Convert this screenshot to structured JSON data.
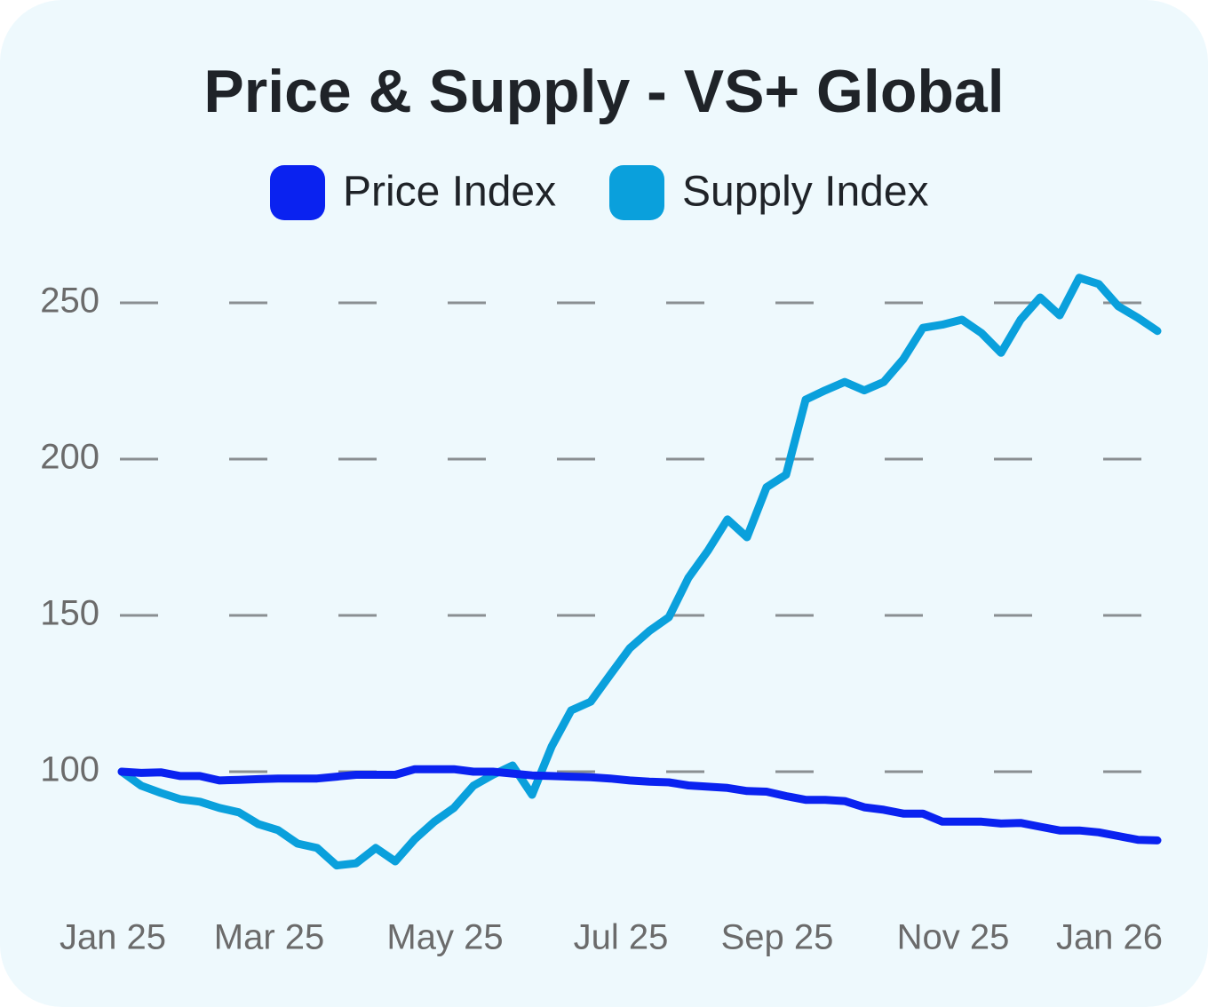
{
  "chart_data": {
    "type": "line",
    "title": "Price & Supply - VS+ Global",
    "categories": [
      "Jan 25",
      null,
      null,
      null,
      null,
      null,
      null,
      null,
      "Mar 25",
      null,
      null,
      null,
      null,
      null,
      null,
      null,
      null,
      "May 25",
      null,
      null,
      null,
      null,
      null,
      null,
      null,
      null,
      "Jul 25",
      null,
      null,
      null,
      null,
      null,
      null,
      null,
      "Sep 25",
      null,
      null,
      null,
      null,
      null,
      null,
      null,
      null,
      "Nov 25",
      null,
      null,
      null,
      null,
      null,
      null,
      null,
      "Jan 26",
      null,
      null
    ],
    "series": [
      {
        "name": "Price Index",
        "color": "#0a22f0",
        "values": [
          100,
          99.6,
          99.8,
          98.6,
          98.6,
          97.2,
          97.4,
          97.6,
          97.8,
          97.8,
          97.8,
          98.4,
          99,
          99,
          99,
          100.8,
          100.8,
          100.8,
          100,
          100,
          99.4,
          98.8,
          98.6,
          98.4,
          98.2,
          97.8,
          97.2,
          96.8,
          96.6,
          95.6,
          95.2,
          94.8,
          93.8,
          93.6,
          92.2,
          91,
          91,
          90.6,
          88.6,
          87.8,
          86.6,
          86.6,
          84,
          84,
          84,
          83.4,
          83.6,
          82.4,
          81.2,
          81.2,
          80.6,
          79.4,
          78.2,
          78
        ]
      },
      {
        "name": "Supply Index",
        "color": "#0aa0dc",
        "values": [
          100,
          95.5,
          93.2,
          91.2,
          90.4,
          88.4,
          87,
          83.2,
          81.3,
          77,
          75.6,
          70,
          70.7,
          75.6,
          71.3,
          78.4,
          84,
          88.4,
          95.5,
          99,
          102,
          92.6,
          108,
          119.6,
          122.4,
          131,
          139.5,
          145,
          149.4,
          162,
          170.7,
          180.7,
          175,
          191,
          195,
          219,
          222,
          224.7,
          222,
          224.7,
          232,
          242,
          243,
          244.6,
          240.3,
          234,
          244.6,
          251.7,
          246,
          258,
          256,
          248.9,
          245.2,
          241
        ]
      }
    ],
    "ylim": [
      60,
      270
    ],
    "yticks": [
      100,
      150,
      200,
      250
    ],
    "grid": true,
    "legend": "top"
  }
}
